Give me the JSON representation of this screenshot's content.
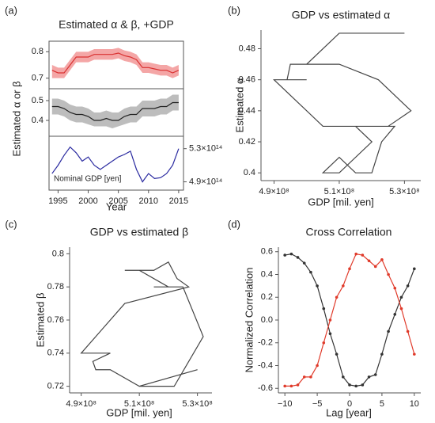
{
  "chart_data": [
    {
      "type": "line",
      "panel_label": "(a)",
      "title": "Estimated α & β, +GDP",
      "ylabel": "Estimated α or β",
      "frame": "box",
      "x": [
        1994,
        1995,
        1996,
        1997,
        1998,
        1999,
        2000,
        2001,
        2002,
        2003,
        2004,
        2005,
        2006,
        2007,
        2008,
        2009,
        2010,
        2011,
        2012,
        2013,
        2014,
        2015
      ],
      "xlim": [
        1993.5,
        2015.8
      ],
      "ylim": [
        0.66,
        0.84
      ],
      "yticks": [
        0.7,
        0.8
      ],
      "series": [
        {
          "color": "#d93030",
          "band_color": "#f4a6a6",
          "values": [
            0.73,
            0.72,
            0.72,
            0.75,
            0.78,
            0.78,
            0.78,
            0.79,
            0.79,
            0.79,
            0.79,
            0.795,
            0.785,
            0.78,
            0.77,
            0.74,
            0.74,
            0.735,
            0.73,
            0.73,
            0.72,
            0.73
          ],
          "lower": [
            0.7,
            0.7,
            0.7,
            0.73,
            0.76,
            0.76,
            0.76,
            0.77,
            0.77,
            0.77,
            0.77,
            0.775,
            0.765,
            0.76,
            0.75,
            0.72,
            0.72,
            0.715,
            0.71,
            0.71,
            0.7,
            0.71
          ],
          "upper": [
            0.75,
            0.74,
            0.74,
            0.77,
            0.8,
            0.8,
            0.8,
            0.81,
            0.81,
            0.81,
            0.81,
            0.815,
            0.805,
            0.8,
            0.79,
            0.76,
            0.76,
            0.755,
            0.75,
            0.75,
            0.74,
            0.75
          ]
        }
      ]
    },
    {
      "type": "line",
      "frame": "box",
      "x": [
        1994,
        1995,
        1996,
        1997,
        1998,
        1999,
        2000,
        2001,
        2002,
        2003,
        2004,
        2005,
        2006,
        2007,
        2008,
        2009,
        2010,
        2011,
        2012,
        2013,
        2014,
        2015
      ],
      "xlim": [
        1993.5,
        2015.8
      ],
      "ylim": [
        0.32,
        0.56
      ],
      "yticks": [
        0.4,
        0.5
      ],
      "series": [
        {
          "color": "#222222",
          "band_color": "#bdbdbd",
          "values": [
            0.47,
            0.47,
            0.46,
            0.44,
            0.43,
            0.43,
            0.42,
            0.4,
            0.4,
            0.41,
            0.4,
            0.4,
            0.42,
            0.43,
            0.43,
            0.46,
            0.46,
            0.46,
            0.47,
            0.47,
            0.49,
            0.49
          ],
          "lower": [
            0.43,
            0.43,
            0.42,
            0.4,
            0.39,
            0.39,
            0.38,
            0.37,
            0.37,
            0.37,
            0.36,
            0.37,
            0.38,
            0.39,
            0.39,
            0.42,
            0.42,
            0.42,
            0.43,
            0.43,
            0.45,
            0.45
          ],
          "upper": [
            0.51,
            0.51,
            0.5,
            0.48,
            0.47,
            0.47,
            0.46,
            0.44,
            0.44,
            0.45,
            0.44,
            0.44,
            0.46,
            0.47,
            0.47,
            0.5,
            0.5,
            0.5,
            0.51,
            0.51,
            0.53,
            0.53
          ]
        }
      ]
    },
    {
      "type": "line",
      "frame": "box",
      "xlabel": "Year",
      "annotation": "Nominal GDP [yen]",
      "x": [
        1994,
        1995,
        1996,
        1997,
        1998,
        1999,
        2000,
        2001,
        2002,
        2003,
        2004,
        2005,
        2006,
        2007,
        2008,
        2009,
        2010,
        2011,
        2012,
        2013,
        2014,
        2015
      ],
      "xlim": [
        1993.5,
        2015.8
      ],
      "xticks": [
        1995,
        2000,
        2005,
        2010,
        2015
      ],
      "y2lim": [
        480000000000000,
        545000000000000
      ],
      "y2ticks": [
        {
          "value": 530000000000000,
          "label": "5.3×10¹⁴"
        },
        {
          "value": 490000000000000,
          "label": "4.9×10¹⁴"
        }
      ],
      "series": [
        {
          "color": "#2a2aa0",
          "axis": "y2",
          "values": [
            500000000000000,
            510000000000000,
            522000000000000,
            532000000000000,
            525000000000000,
            515000000000000,
            520000000000000,
            510000000000000,
            505000000000000,
            510000000000000,
            515000000000000,
            520000000000000,
            523000000000000,
            527000000000000,
            505000000000000,
            490000000000000,
            500000000000000,
            494000000000000,
            495000000000000,
            500000000000000,
            510000000000000,
            530000000000000
          ]
        }
      ]
    },
    {
      "type": "line",
      "panel_label": "(b)",
      "title": "GDP vs estimated α",
      "xlabel": "GDP [mil. yen]",
      "ylabel": "Estimated α",
      "frame": "open",
      "x": [
        500000000,
        510000000,
        522000000,
        532000000,
        525000000,
        515000000,
        520000000,
        510000000,
        505000000,
        510000000,
        515000000,
        520000000,
        523000000,
        527000000,
        505000000,
        490000000,
        500000000,
        494000000,
        495000000,
        500000000,
        510000000,
        530000000
      ],
      "xlim": [
        486000000,
        535000000
      ],
      "ylim": [
        0.395,
        0.492
      ],
      "xticks": [
        {
          "value": 490000000,
          "label": "4.9×10⁸"
        },
        {
          "value": 510000000,
          "label": "5.1×10⁸"
        },
        {
          "value": 530000000,
          "label": "5.3×10⁸"
        }
      ],
      "yticks": [
        0.4,
        0.42,
        0.44,
        0.46,
        0.48
      ],
      "series": [
        {
          "color": "#444444",
          "values": [
            0.47,
            0.47,
            0.46,
            0.44,
            0.43,
            0.43,
            0.42,
            0.4,
            0.4,
            0.41,
            0.4,
            0.4,
            0.42,
            0.43,
            0.43,
            0.46,
            0.46,
            0.46,
            0.47,
            0.47,
            0.49,
            0.49
          ]
        }
      ]
    },
    {
      "type": "line",
      "panel_label": "(c)",
      "title": "GDP vs estimated β",
      "xlabel": "GDP [mil. yen]",
      "ylabel": "Estimated β",
      "frame": "open",
      "x": [
        500000000,
        510000000,
        522000000,
        532000000,
        525000000,
        515000000,
        520000000,
        510000000,
        505000000,
        510000000,
        515000000,
        520000000,
        523000000,
        527000000,
        505000000,
        490000000,
        500000000,
        494000000,
        495000000,
        500000000,
        510000000,
        530000000
      ],
      "xlim": [
        486000000,
        535000000
      ],
      "ylim": [
        0.716,
        0.804
      ],
      "xticks": [
        {
          "value": 490000000,
          "label": "4.9×10⁸"
        },
        {
          "value": 510000000,
          "label": "5.1×10⁸"
        },
        {
          "value": 530000000,
          "label": "5.3×10⁸"
        }
      ],
      "yticks": [
        0.72,
        0.74,
        0.76,
        0.78,
        0.8
      ],
      "series": [
        {
          "color": "#444444",
          "values": [
            0.73,
            0.72,
            0.72,
            0.75,
            0.78,
            0.78,
            0.78,
            0.79,
            0.79,
            0.79,
            0.79,
            0.795,
            0.785,
            0.78,
            0.77,
            0.74,
            0.74,
            0.735,
            0.73,
            0.73,
            0.72,
            0.73
          ]
        }
      ]
    },
    {
      "type": "line",
      "panel_label": "(d)",
      "title": "Cross Correlation",
      "xlabel": "Lag [year]",
      "ylabel": "Normalized Correlation",
      "frame": "open",
      "markers": true,
      "x": [
        -10,
        -9,
        -8,
        -7,
        -6,
        -5,
        -4,
        -3,
        -2,
        -1,
        0,
        1,
        2,
        3,
        4,
        5,
        6,
        7,
        8,
        9,
        10
      ],
      "xlim": [
        -11,
        11
      ],
      "ylim": [
        -0.64,
        0.64
      ],
      "xticks": [
        {
          "value": -10,
          "label": "−10"
        },
        {
          "value": -5,
          "label": "−5"
        },
        0,
        5,
        10
      ],
      "yticks": [
        {
          "value": -0.6,
          "label": "-0.6"
        },
        {
          "value": -0.4,
          "label": "-0.4"
        },
        {
          "value": -0.2,
          "label": "-0.2"
        },
        {
          "value": 0,
          "label": "0.0"
        },
        0.2,
        0.4,
        0.6
      ],
      "series": [
        {
          "color": "#333333",
          "values": [
            0.57,
            0.58,
            0.55,
            0.5,
            0.42,
            0.3,
            0.1,
            -0.12,
            -0.3,
            -0.5,
            -0.57,
            -0.58,
            -0.57,
            -0.5,
            -0.48,
            -0.3,
            -0.1,
            0.05,
            0.2,
            0.3,
            0.45
          ]
        },
        {
          "color": "#e03a2a",
          "values": [
            -0.58,
            -0.58,
            -0.57,
            -0.5,
            -0.5,
            -0.4,
            -0.2,
            0.0,
            0.2,
            0.3,
            0.45,
            0.58,
            0.57,
            0.52,
            0.47,
            0.53,
            0.4,
            0.28,
            0.1,
            -0.1,
            -0.3
          ]
        }
      ]
    }
  ]
}
